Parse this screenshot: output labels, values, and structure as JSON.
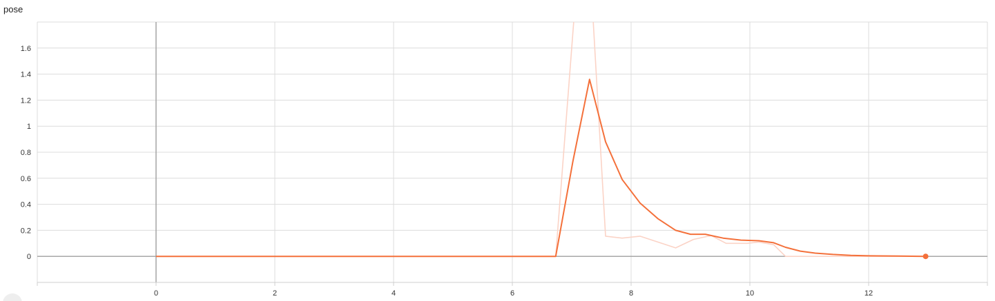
{
  "header": {
    "title": "pose"
  },
  "chart_data": {
    "type": "line",
    "title": "pose",
    "xlabel": "",
    "ylabel": "",
    "xlim": [
      -2,
      14
    ],
    "ylim": [
      -0.2,
      1.8
    ],
    "x_ticks": [
      0,
      2,
      4,
      6,
      8,
      10,
      12
    ],
    "x_tick_labels": [
      "0",
      "2",
      "4",
      "6",
      "8",
      "10",
      "12"
    ],
    "y_ticks": [
      0,
      0.2,
      0.4,
      0.6,
      0.8,
      1,
      1.2,
      1.4,
      1.6
    ],
    "y_tick_labels": [
      "0",
      "0.2",
      "0.4",
      "0.6",
      "0.8",
      "1",
      "1.2",
      "1.4",
      "1.6"
    ],
    "grid": true,
    "series": [
      {
        "color": "#fbd3c6",
        "x": [
          0,
          6.73,
          7.05,
          7.35,
          7.57,
          7.85,
          8.15,
          8.45,
          8.75,
          9.05,
          9.35,
          9.6,
          9.95,
          10.15,
          10.4,
          10.6,
          11.0,
          12.0,
          13.0
        ],
        "y": [
          0,
          0,
          1.9,
          1.9,
          0.155,
          0.14,
          0.155,
          0.11,
          0.065,
          0.13,
          0.16,
          0.1,
          0.1,
          0.11,
          0.09,
          0.0,
          0.0,
          0.0,
          0.0
        ]
      },
      {
        "color": "#f4703a",
        "x": [
          0,
          6.73,
          7.02,
          7.3,
          7.57,
          7.85,
          8.15,
          8.45,
          8.75,
          9.0,
          9.25,
          9.55,
          9.85,
          10.15,
          10.4,
          10.6,
          10.85,
          11.1,
          11.4,
          11.7,
          12.0,
          12.5,
          12.96
        ],
        "y": [
          0,
          0,
          0.73,
          1.36,
          0.88,
          0.59,
          0.41,
          0.29,
          0.2,
          0.17,
          0.17,
          0.14,
          0.125,
          0.12,
          0.105,
          0.07,
          0.04,
          0.025,
          0.015,
          0.008,
          0.004,
          0.002,
          0.0
        ]
      }
    ],
    "end_marker": {
      "x": 12.96,
      "y": 0.0
    }
  }
}
